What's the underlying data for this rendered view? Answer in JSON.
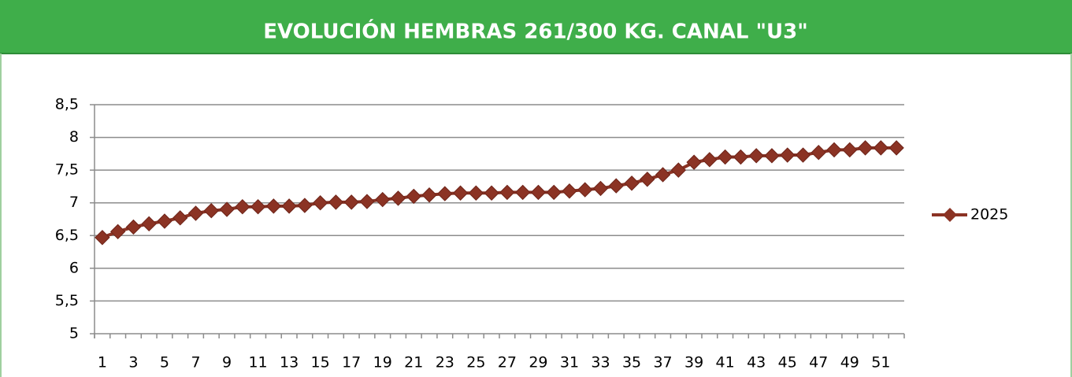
{
  "chart_data": {
    "type": "line",
    "title": "EVOLUCIÓN HEMBRAS 261/300 KG. CANAL \"U3\"",
    "categories": [
      1,
      null,
      3,
      null,
      5,
      null,
      7,
      null,
      9,
      null,
      11,
      null,
      13,
      null,
      15,
      null,
      17,
      null,
      19,
      null,
      21,
      null,
      23,
      null,
      25,
      null,
      27,
      null,
      29,
      null,
      31,
      null,
      33,
      null,
      35,
      null,
      37,
      null,
      39,
      null,
      41,
      null,
      43,
      null,
      45,
      null,
      47,
      null,
      49,
      null,
      51,
      null
    ],
    "series": [
      {
        "name": "2025",
        "color": "#8b3324",
        "values": [
          6.47,
          6.56,
          6.63,
          6.68,
          6.72,
          6.77,
          6.84,
          6.88,
          6.9,
          6.94,
          6.94,
          6.95,
          6.95,
          6.96,
          7.0,
          7.01,
          7.01,
          7.02,
          7.05,
          7.07,
          7.1,
          7.12,
          7.14,
          7.15,
          7.15,
          7.15,
          7.16,
          7.16,
          7.16,
          7.16,
          7.18,
          7.2,
          7.22,
          7.26,
          7.3,
          7.36,
          7.43,
          7.5,
          7.62,
          7.66,
          7.7,
          7.7,
          7.72,
          7.72,
          7.73,
          7.73,
          7.77,
          7.81,
          7.81,
          7.84,
          7.84,
          7.84
        ]
      }
    ],
    "ylim": [
      5,
      8.5
    ],
    "yticks": [
      5,
      {
        "value": 5.5,
        "label": "5,5"
      },
      6,
      {
        "value": 6.5,
        "label": "6,5"
      },
      7,
      {
        "value": 7.5,
        "label": "7,5"
      },
      8,
      {
        "value": 8.5,
        "label": "8,5"
      }
    ],
    "grid": true,
    "legend": "right"
  }
}
